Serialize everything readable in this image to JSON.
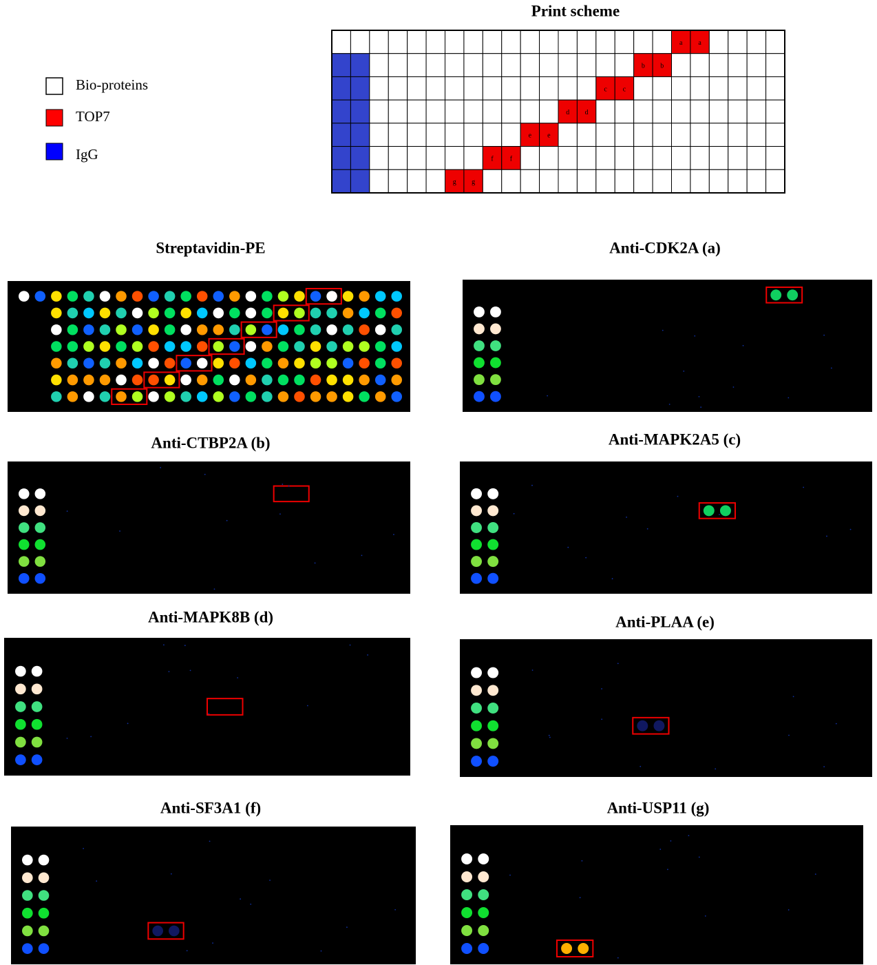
{
  "scheme": {
    "title": "Print scheme",
    "labels": [
      "a",
      "b",
      "c",
      "d",
      "e",
      "f",
      "g"
    ]
  },
  "legend": [
    "Bio-proteins",
    "TOP7",
    "IgG"
  ],
  "panels": [
    {
      "title": "Streptavidin-PE"
    },
    {
      "title": "Anti-CDK2A (a)"
    },
    {
      "title": "Anti-CTBP2A (b)"
    },
    {
      "title": "Anti-MAPK2A5 (c)"
    },
    {
      "title": "Anti-MAPK8B (d)"
    },
    {
      "title": "Anti-PLAA (e)"
    },
    {
      "title": "Anti-SF3A1 (f)"
    },
    {
      "title": "Anti-USP11 (g)"
    }
  ]
}
